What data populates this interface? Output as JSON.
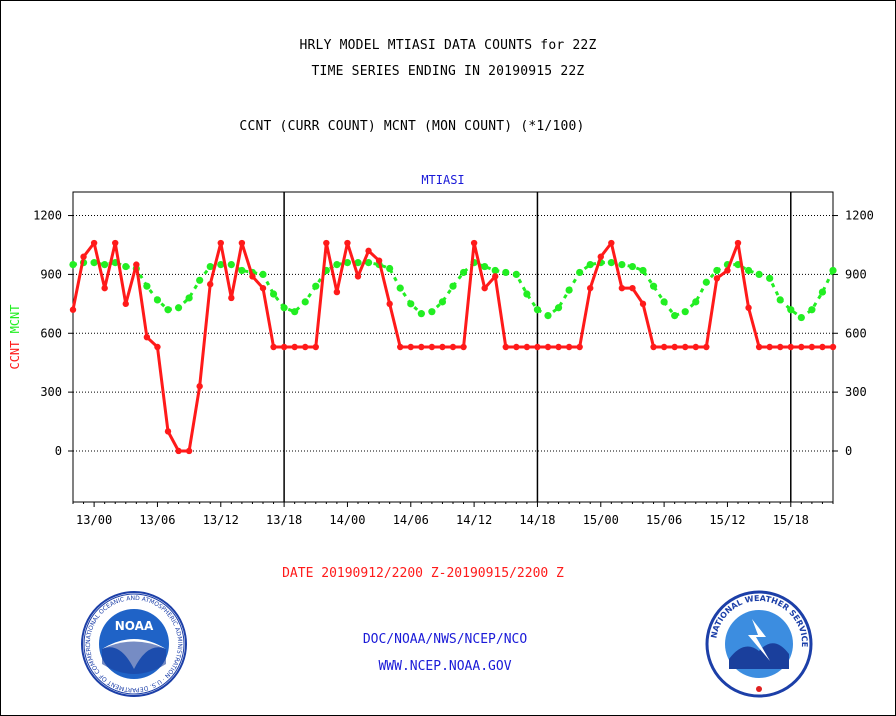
{
  "header": {
    "title_line1": "HRLY MODEL MTIASI DATA COUNTS for 22Z",
    "title_line2": "TIME SERIES ENDING IN 20190915 22Z",
    "subtitle": "CCNT (CURR COUNT) MCNT (MON COUNT) (*1/100)"
  },
  "chart_data": {
    "type": "line",
    "title": "MTIASI",
    "ylabel_red": "CCNT",
    "ylabel_green": "MCNT",
    "xlabel": "DATE 20190912/2200 Z-20190915/2200 Z",
    "ylim": [
      -260,
      1320
    ],
    "yticks": [
      0,
      300,
      600,
      900,
      1200
    ],
    "xlim": [
      0,
      72
    ],
    "x_tick_positions": [
      2,
      8,
      14,
      20,
      26,
      32,
      38,
      44,
      50,
      56,
      62,
      68
    ],
    "x_tick_labels": [
      "13/00",
      "13/06",
      "13/12",
      "13/18",
      "14/00",
      "14/06",
      "14/12",
      "14/18",
      "15/00",
      "15/06",
      "15/12",
      "15/18"
    ],
    "day_separators": [
      20,
      44,
      68
    ],
    "grid": true,
    "colors": {
      "CCNT": "#ff1a1a",
      "MCNT": "#22ee22"
    },
    "series": [
      {
        "name": "CCNT",
        "values": [
          720,
          990,
          1060,
          830,
          1060,
          750,
          950,
          580,
          530,
          100,
          0,
          0,
          330,
          850,
          1060,
          780,
          1060,
          890,
          830,
          530,
          530,
          530,
          530,
          530,
          1060,
          810,
          1060,
          890,
          1020,
          970,
          750,
          530,
          530,
          530,
          530,
          530,
          530,
          530,
          1060,
          830,
          890,
          530,
          530,
          530,
          530,
          530,
          530,
          530,
          530,
          830,
          990,
          1060,
          830,
          830,
          750,
          530,
          530,
          530,
          530,
          530,
          530,
          880,
          920,
          1060,
          730,
          530,
          530,
          530,
          530,
          530,
          530,
          530,
          530
        ]
      },
      {
        "name": "MCNT",
        "values": [
          950,
          960,
          960,
          950,
          960,
          940,
          930,
          840,
          770,
          720,
          730,
          780,
          870,
          940,
          950,
          950,
          920,
          910,
          900,
          800,
          730,
          710,
          760,
          840,
          920,
          950,
          960,
          960,
          960,
          950,
          930,
          830,
          750,
          700,
          710,
          760,
          840,
          910,
          960,
          940,
          920,
          910,
          900,
          800,
          720,
          690,
          730,
          820,
          910,
          950,
          960,
          960,
          950,
          940,
          920,
          840,
          760,
          690,
          710,
          760,
          860,
          920,
          950,
          950,
          920,
          900,
          880,
          770,
          720,
          680,
          720,
          810,
          920
        ]
      }
    ]
  },
  "footer": {
    "url1": "DOC/NOAA/NWS/NCEP/NCO",
    "url2": "WWW.NCEP.NOAA.GOV",
    "noaa_logo_text": "NOAA",
    "noaa_ring_text": "NATIONAL OCEANIC AND ATMOSPHERIC ADMINISTRATION · U.S. DEPARTMENT OF COMMERCE",
    "nws_ring_text": "NATIONAL WEATHER SERVICE"
  }
}
